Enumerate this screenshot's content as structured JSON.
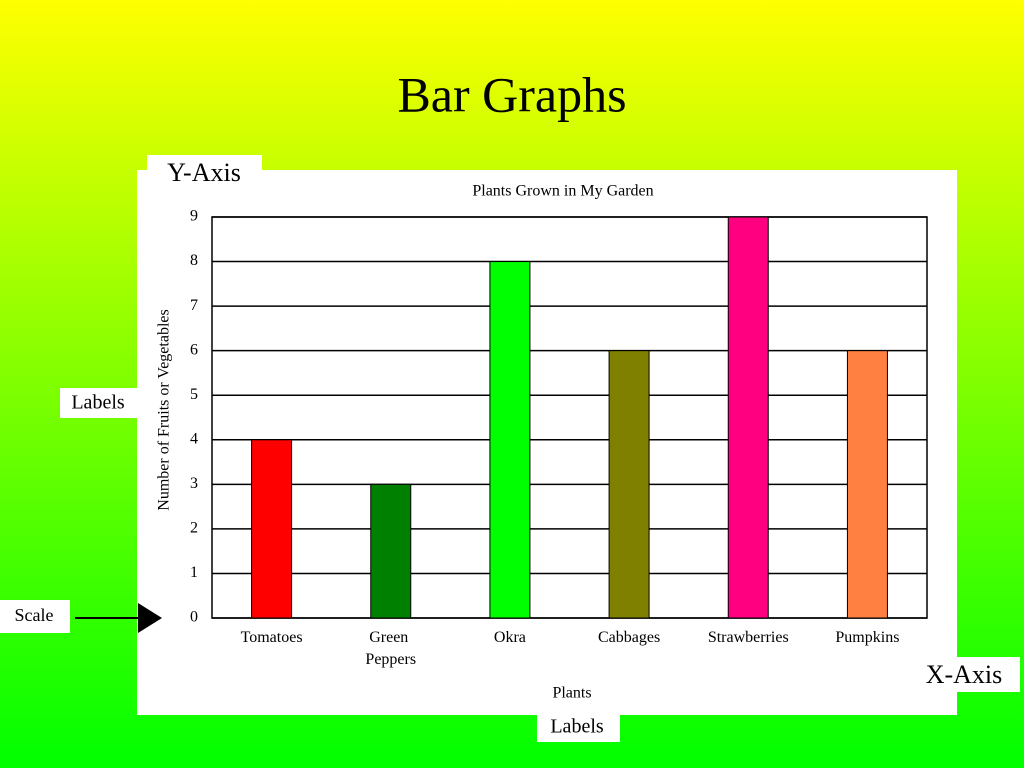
{
  "slide_title": "Bar Graphs",
  "annotations": [
    "Y-Axis",
    "Labels",
    "Scale",
    "X-Axis",
    "Labels"
  ],
  "chart_data": {
    "type": "bar",
    "title": "Plants Grown in My Garden",
    "x_label": "Plants",
    "y_label": "Number of Fruits or Vegetables",
    "categories": [
      "Tomatoes",
      "Green Peppers",
      "Okra",
      "Cabbages",
      "Strawberries",
      "Pumpkins"
    ],
    "values": [
      4,
      3,
      8,
      6,
      9,
      6
    ],
    "colors": [
      "#ff0000",
      "#008000",
      "#00ff00",
      "#808000",
      "#ff0080",
      "#ff8040"
    ],
    "ylim": [
      0,
      9
    ],
    "yticks": [
      0,
      1,
      2,
      3,
      4,
      5,
      6,
      7,
      8,
      9
    ],
    "grid": true
  }
}
